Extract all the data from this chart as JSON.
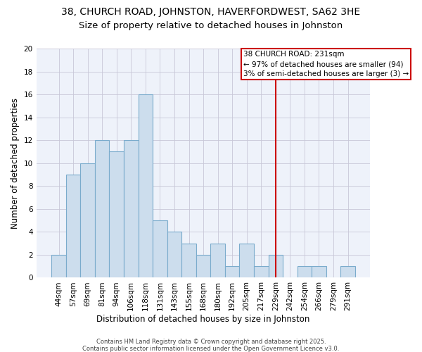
{
  "title_line1": "38, CHURCH ROAD, JOHNSTON, HAVERFORDWEST, SA62 3HE",
  "title_line2": "Size of property relative to detached houses in Johnston",
  "xlabel": "Distribution of detached houses by size in Johnston",
  "ylabel": "Number of detached properties",
  "categories": [
    "44sqm",
    "57sqm",
    "69sqm",
    "81sqm",
    "94sqm",
    "106sqm",
    "118sqm",
    "131sqm",
    "143sqm",
    "155sqm",
    "168sqm",
    "180sqm",
    "192sqm",
    "205sqm",
    "217sqm",
    "229sqm",
    "242sqm",
    "254sqm",
    "266sqm",
    "279sqm",
    "291sqm"
  ],
  "values": [
    2,
    9,
    10,
    12,
    11,
    12,
    16,
    5,
    4,
    3,
    2,
    3,
    1,
    3,
    1,
    2,
    0,
    1,
    1,
    0,
    1
  ],
  "bar_color": "#ccdded",
  "bar_edge_color": "#7aabcc",
  "grid_color": "#c8c8d8",
  "background_color": "#eef2fa",
  "vline_x_index": 15,
  "vline_color": "#cc0000",
  "annotation_title": "38 CHURCH ROAD: 231sqm",
  "annotation_line1": "← 97% of detached houses are smaller (94)",
  "annotation_line2": "3% of semi-detached houses are larger (3) →",
  "annotation_box_color": "#ffffff",
  "annotation_box_edge": "#cc0000",
  "ylim": [
    0,
    20
  ],
  "yticks": [
    0,
    2,
    4,
    6,
    8,
    10,
    12,
    14,
    16,
    18,
    20
  ],
  "footer_line1": "Contains HM Land Registry data © Crown copyright and database right 2025.",
  "footer_line2": "Contains public sector information licensed under the Open Government Licence v3.0.",
  "title_fontsize": 10,
  "subtitle_fontsize": 9.5,
  "axis_label_fontsize": 8.5,
  "tick_fontsize": 7.5,
  "annotation_fontsize": 7.5,
  "footer_fontsize": 6
}
